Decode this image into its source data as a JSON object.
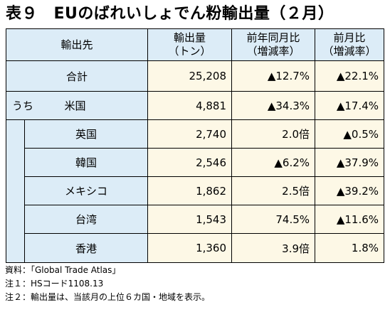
{
  "title": "表９　EUのばれいしょでん粉輸出量（２月）",
  "headers": {
    "origin": "輸出先",
    "qty_line1": "輸出量",
    "qty_line2": "（トン）",
    "yoy_line1": "前年同月比",
    "yoy_line2": "（増減率）",
    "mom_line1": "前月比",
    "mom_line2": "（増減率）"
  },
  "total": {
    "label": "合計",
    "qty": "25,208",
    "yoy": "▲12.7%",
    "mom": "▲22.1%"
  },
  "sub_label": "うち",
  "rows": [
    {
      "country": "米国",
      "qty": "4,881",
      "yoy": "▲34.3%",
      "mom": "▲17.4%"
    },
    {
      "country": "英国",
      "qty": "2,740",
      "yoy": "2.0倍",
      "mom": "▲0.5%"
    },
    {
      "country": "韓国",
      "qty": "2,546",
      "yoy": "▲6.2%",
      "mom": "▲37.9%"
    },
    {
      "country": "メキシコ",
      "qty": "1,862",
      "yoy": "2.5倍",
      "mom": "▲39.2%"
    },
    {
      "country": "台湾",
      "qty": "1,543",
      "yoy": "74.5%",
      "mom": "▲11.6%"
    },
    {
      "country": "香港",
      "qty": "1,360",
      "yoy": "3.9倍",
      "mom": "1.8%"
    }
  ],
  "notes": [
    "資料：「Global Trade Atlas」",
    "注１：HSコード1108.13",
    "注２：輸出量は、当該月の上位６カ国・地域を表示。"
  ]
}
